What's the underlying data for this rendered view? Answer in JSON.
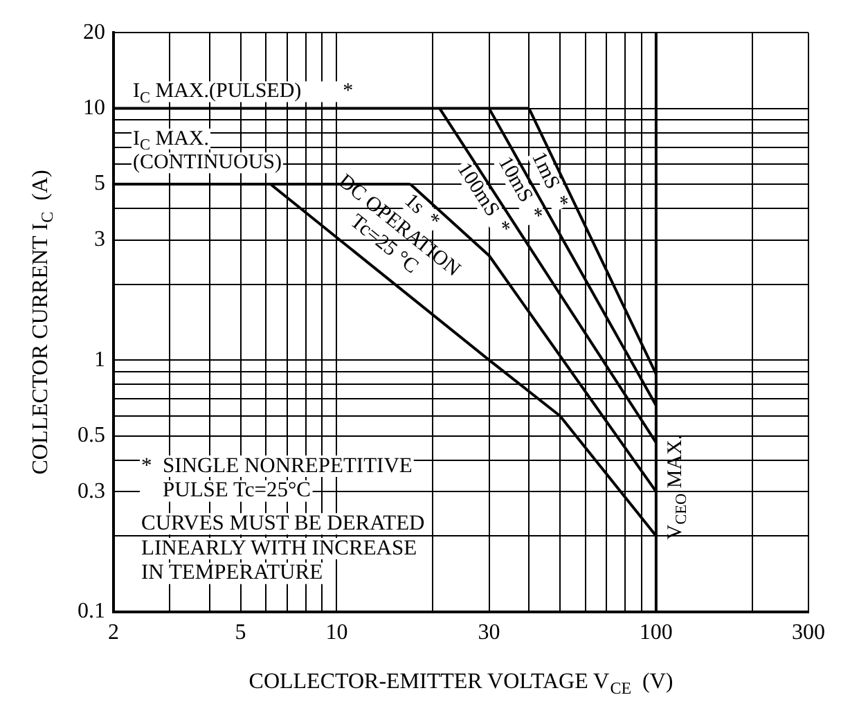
{
  "chart_data": {
    "type": "line",
    "xlabel": "COLLECTOR-EMITTER VOLTAGE V$_{CE}$  (V)",
    "ylabel": "COLLECTOR CURRENT I$_{C}$  (A)",
    "log": "xy",
    "xlim": [
      2,
      300
    ],
    "ylim": [
      0.1,
      20
    ],
    "xticks": [
      2,
      {
        "value": 3,
        "label": null
      },
      {
        "value": 4,
        "label": null
      },
      5,
      {
        "value": 6,
        "label": null
      },
      {
        "value": 7,
        "label": null
      },
      {
        "value": 8,
        "label": null
      },
      {
        "value": 9,
        "label": null
      },
      10,
      {
        "value": 20,
        "label": null
      },
      30,
      {
        "value": 40,
        "label": null
      },
      {
        "value": 50,
        "label": null
      },
      {
        "value": 60,
        "label": null
      },
      {
        "value": 70,
        "label": null
      },
      {
        "value": 80,
        "label": null
      },
      {
        "value": 90,
        "label": null
      },
      100,
      {
        "value": 200,
        "label": null
      },
      300
    ],
    "yticks": [
      0.1,
      {
        "value": 0.2,
        "label": null
      },
      0.3,
      {
        "value": 0.4,
        "label": null
      },
      0.5,
      {
        "value": 0.6,
        "label": null
      },
      {
        "value": 0.7,
        "label": null
      },
      {
        "value": 0.8,
        "label": null
      },
      {
        "value": 0.9,
        "label": null
      },
      1,
      {
        "value": 2,
        "label": null
      },
      3,
      {
        "value": 4,
        "label": null
      },
      5,
      {
        "value": 6,
        "label": null
      },
      {
        "value": 7,
        "label": null
      },
      {
        "value": 8,
        "label": null
      },
      {
        "value": 9,
        "label": null
      },
      10,
      20
    ],
    "grid": true,
    "legend": false,
    "marker": "none",
    "line_style": "solid",
    "series": [
      {
        "name": "I$_{C}$ MAX.(PULSED)        *",
        "color": "#000000",
        "x": [
          2,
          40
        ],
        "values": [
          10,
          10
        ]
      },
      {
        "name": "I$_{C}$ MAX.\n(CONTINUOUS)",
        "color": "#000000",
        "x": [
          2,
          17
        ],
        "values": [
          5,
          5
        ]
      },
      {
        "name": "DC OPERATION\nTc=25 °C",
        "color": "#000000",
        "x": [
          6.2,
          30,
          50,
          100
        ],
        "values": [
          5,
          1,
          0.6,
          0.2
        ]
      },
      {
        "name": "1s  *",
        "color": "#000000",
        "x": [
          17,
          30,
          100
        ],
        "values": [
          5,
          2.6,
          0.3
        ]
      },
      {
        "name": "100mS  *",
        "color": "#000000",
        "x": [
          21,
          100
        ],
        "values": [
          10,
          0.47
        ]
      },
      {
        "name": "10mS  *",
        "color": "#000000",
        "x": [
          30,
          100
        ],
        "values": [
          10,
          0.66
        ]
      },
      {
        "name": "1mS  *",
        "color": "#000000",
        "x": [
          40,
          100
        ],
        "values": [
          10,
          0.88
        ]
      }
    ],
    "ref_lines": [
      {
        "axis": "x",
        "value": 100,
        "label": "V$_{CEO}$ MAX.",
        "color": "#000000"
      }
    ],
    "annotations": [
      "*  SINGLE NONREPETITIVE\n    PULSE Tc=25°C",
      "CURVES MUST BE DERATED\nLINEARLY WITH INCREASE\nIN TEMPERATURE"
    ]
  }
}
